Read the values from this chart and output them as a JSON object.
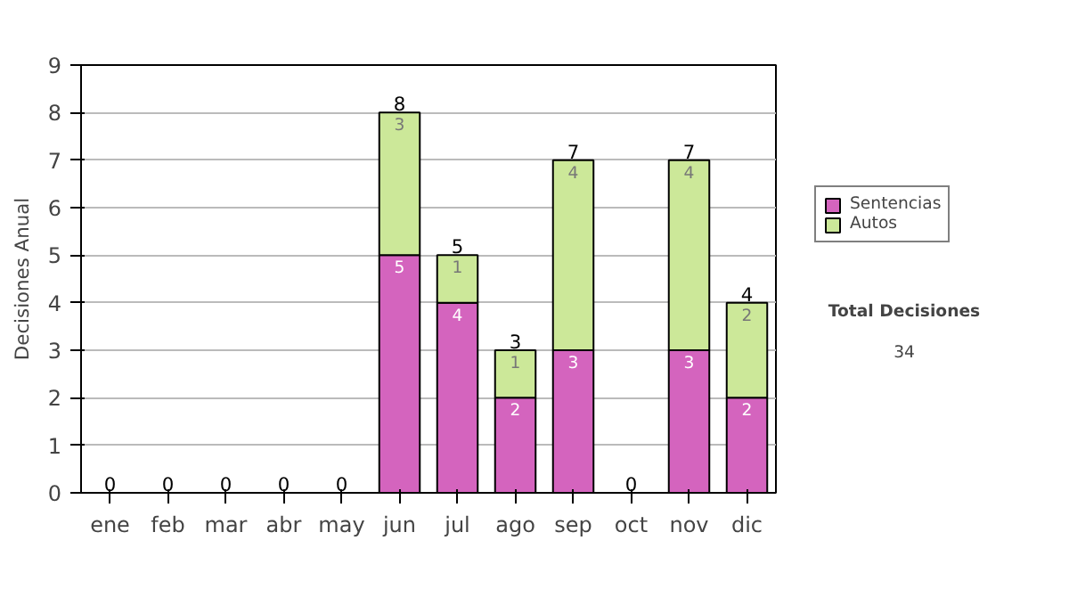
{
  "chart_data": {
    "type": "bar",
    "stacked": true,
    "ylabel": "Decisiones Anual",
    "categories": [
      "ene",
      "feb",
      "mar",
      "abr",
      "may",
      "jun",
      "jul",
      "ago",
      "sep",
      "oct",
      "nov",
      "dic"
    ],
    "series": [
      {
        "name": "Sentencias",
        "color": "#d464be",
        "values": [
          0,
          0,
          0,
          0,
          0,
          5,
          4,
          2,
          3,
          0,
          3,
          2
        ],
        "value_labels": [
          null,
          null,
          null,
          null,
          null,
          "5",
          "4",
          "2",
          "3",
          null,
          "3",
          "2"
        ]
      },
      {
        "name": "Autos",
        "color": "#cce899",
        "values": [
          0,
          0,
          0,
          0,
          0,
          3,
          1,
          1,
          4,
          0,
          4,
          2
        ],
        "value_labels": [
          null,
          null,
          null,
          null,
          null,
          "3",
          "1",
          "1",
          "4",
          null,
          "4",
          "2"
        ]
      }
    ],
    "totals": [
      "0",
      "0",
      "0",
      "0",
      "0",
      "8",
      "5",
      "3",
      "7",
      "0",
      "7",
      "4"
    ],
    "ylim": [
      0,
      9
    ],
    "yticks": [
      0,
      1,
      2,
      3,
      4,
      5,
      6,
      7,
      8,
      9
    ],
    "grid": "y",
    "legend": "right",
    "annotations": [
      "Total Decisiones",
      "34"
    ]
  }
}
